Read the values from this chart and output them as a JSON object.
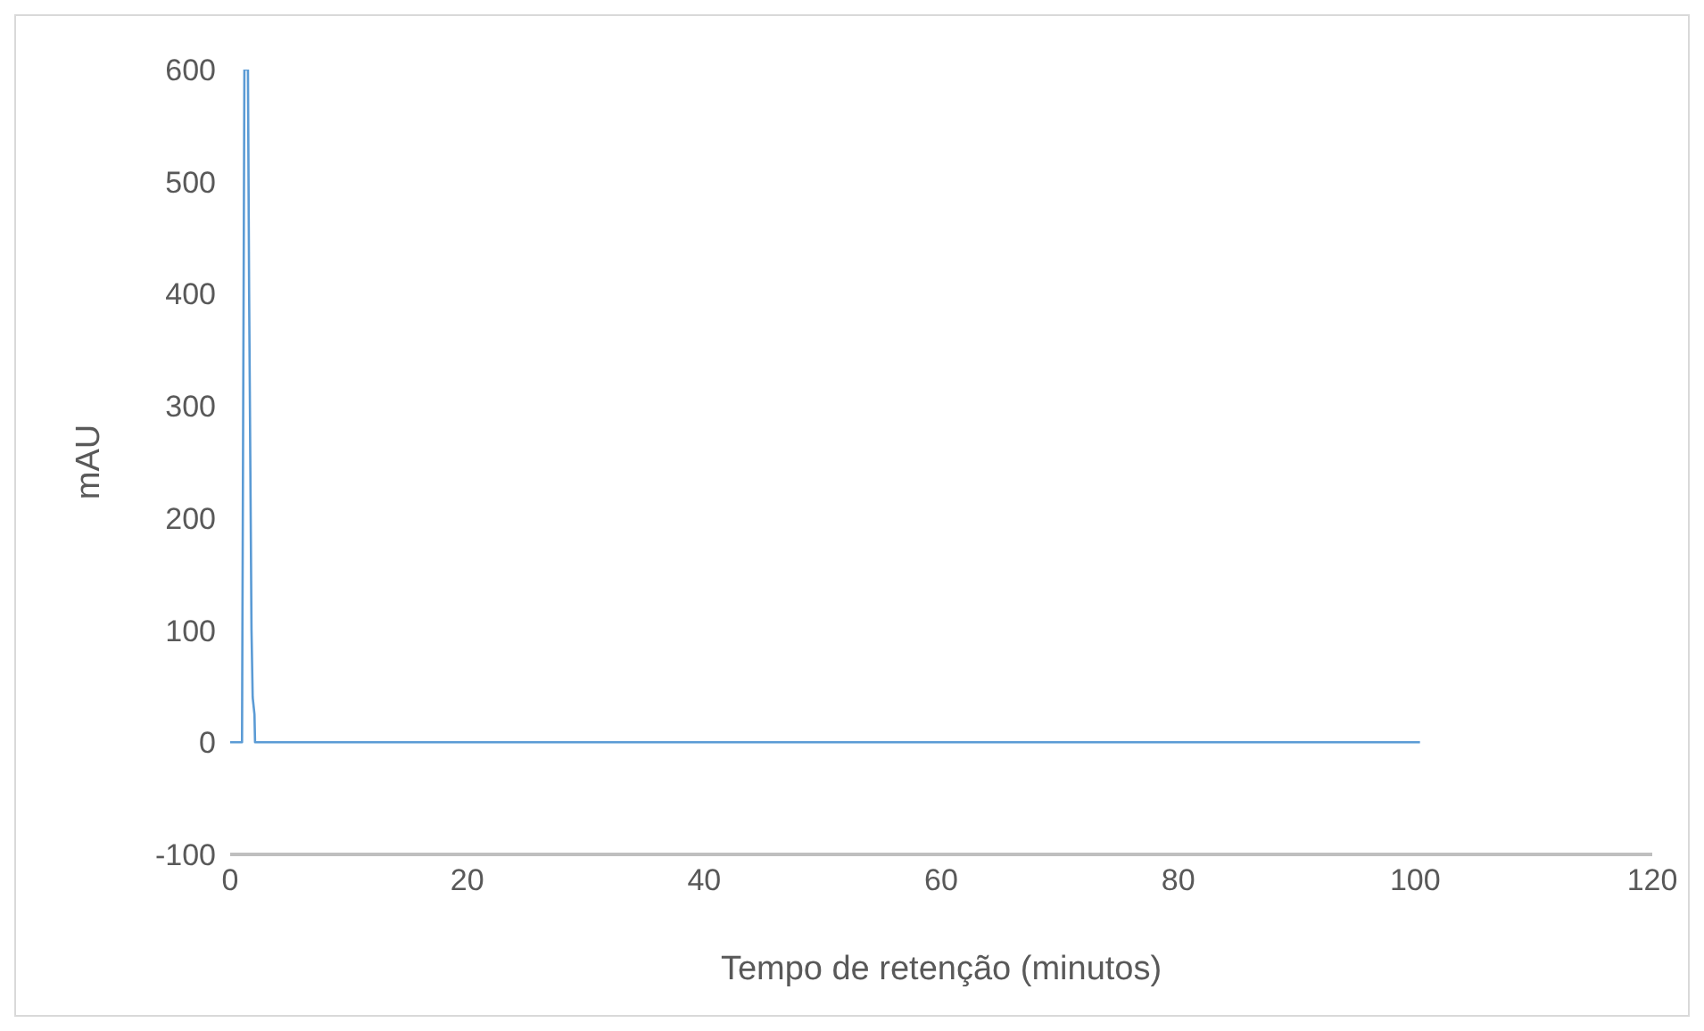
{
  "chart_data": {
    "type": "line",
    "xlabel": "Tempo de retenção (minutos)",
    "ylabel": "mAU",
    "series": [
      {
        "color": "#5b9bd5",
        "x": [
          0,
          1.0,
          1.2,
          1.35,
          1.5,
          1.6,
          1.8,
          1.9,
          2.0,
          2.05,
          2.1,
          100.4
        ],
        "values": [
          0,
          0,
          600,
          600,
          600,
          400,
          100,
          40,
          30,
          25,
          0,
          0
        ]
      }
    ],
    "xlim": [
      0,
      120
    ],
    "xticks": [
      0,
      20,
      40,
      60,
      80,
      100,
      120
    ],
    "ylim": [
      -100,
      600
    ],
    "yticks": [
      -100,
      0,
      100,
      200,
      300,
      400,
      500,
      600
    ],
    "grid": false,
    "legend": false,
    "marker": "none",
    "line_style": "solid"
  }
}
